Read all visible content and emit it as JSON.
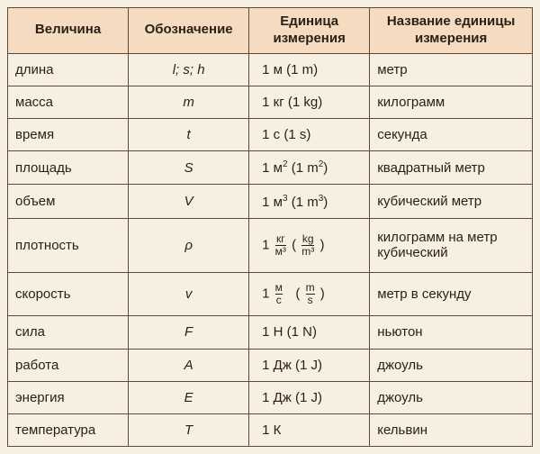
{
  "colors": {
    "page_bg": "#f7efe2",
    "header_bg": "#f5dcc0",
    "border": "#5a4a3a",
    "text": "#2a1f15"
  },
  "columns": [
    "Величина",
    "Обозначение",
    "Единица измерения",
    "Название единицы измерения"
  ],
  "rows": [
    {
      "quantity": "длина",
      "symbol": "l; s; h",
      "name": "метр"
    },
    {
      "quantity": "масса",
      "symbol": "m",
      "name": "килограмм"
    },
    {
      "quantity": "время",
      "symbol": "t",
      "name": "секунда"
    },
    {
      "quantity": "площадь",
      "symbol": "S",
      "name": "квадратный метр"
    },
    {
      "quantity": "объем",
      "symbol": "V",
      "name": "кубический метр"
    },
    {
      "quantity": "плотность",
      "symbol": "ρ",
      "name": "килограмм на метр кубический"
    },
    {
      "quantity": "скорость",
      "symbol": "v",
      "name": "метр в секунду"
    },
    {
      "quantity": "сила",
      "symbol": "F",
      "name": "ньютон"
    },
    {
      "quantity": "работа",
      "symbol": "A",
      "name": "джоуль"
    },
    {
      "quantity": "энергия",
      "symbol": "E",
      "name": "джоуль"
    },
    {
      "quantity": "температура",
      "symbol": "T",
      "name": "кельвин"
    }
  ],
  "units": {
    "0": {
      "plain": "1 м (1 m)"
    },
    "1": {
      "plain": "1 кг (1 kg)"
    },
    "2": {
      "plain": "1 с (1 s)"
    },
    "3": {
      "base_ru": "1 м",
      "sup_ru": "2",
      "base_en": " (1 m",
      "sup_en": "2",
      "close": ")"
    },
    "4": {
      "base_ru": "1 м",
      "sup_ru": "3",
      "base_en": " (1 m",
      "sup_en": "3",
      "close": ")"
    },
    "5": {
      "lead": "1",
      "num_ru": "кг",
      "den_ru": "м³",
      "num_en": "kg",
      "den_en": "m³"
    },
    "6": {
      "lead": "1",
      "num_ru": "м",
      "den_ru": "с",
      "num_en": "m",
      "den_en": "s"
    },
    "7": {
      "plain": "1 Н (1 N)"
    },
    "8": {
      "plain": "1 Дж (1 J)"
    },
    "9": {
      "plain": "1 Дж (1 J)"
    },
    "10": {
      "plain": "1 К"
    }
  }
}
